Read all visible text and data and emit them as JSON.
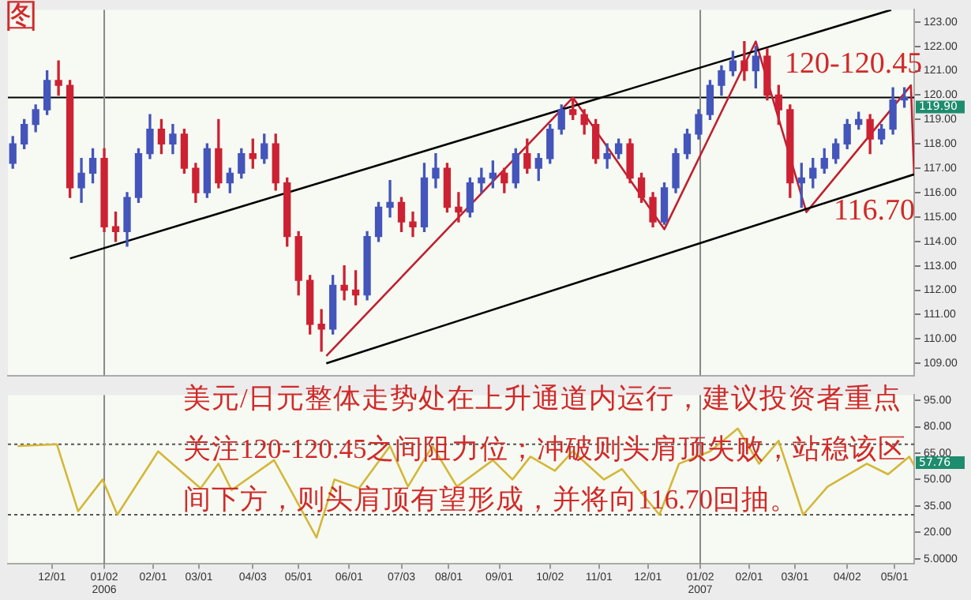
{
  "chart_data": [
    {
      "type": "candlestick",
      "tick_labels": "y",
      "xlim": [
        "2005-11-04",
        "2007-05-13"
      ],
      "ylim": [
        108.5,
        123.5
      ],
      "yticks": [
        {
          "value": 109,
          "label": "109.00"
        },
        {
          "value": 110,
          "label": "110.00"
        },
        {
          "value": 111,
          "label": "111.00"
        },
        {
          "value": 112,
          "label": "112.00"
        },
        {
          "value": 113,
          "label": "113.00"
        },
        {
          "value": 114,
          "label": "114.00"
        },
        {
          "value": 115,
          "label": "115.00"
        },
        {
          "value": 116,
          "label": "116.00"
        },
        {
          "value": 117,
          "label": "117.00"
        },
        {
          "value": 118,
          "label": "118.00"
        },
        {
          "value": 119,
          "label": "119.00"
        },
        {
          "value": 120,
          "label": "120.00"
        },
        {
          "value": 121,
          "label": "121.00"
        },
        {
          "value": 122,
          "label": "122.00"
        },
        {
          "value": 123,
          "label": "123.00"
        }
      ],
      "x": [
        "2005-11-07",
        "2005-11-14",
        "2005-11-21",
        "2005-11-28",
        "2005-12-05",
        "2005-12-12",
        "2005-12-19",
        "2005-12-26",
        "2006-01-02",
        "2006-01-09",
        "2006-01-16",
        "2006-01-23",
        "2006-01-30",
        "2006-02-06",
        "2006-02-13",
        "2006-02-20",
        "2006-02-27",
        "2006-03-06",
        "2006-03-13",
        "2006-03-20",
        "2006-03-27",
        "2006-04-03",
        "2006-04-10",
        "2006-04-17",
        "2006-04-24",
        "2006-05-01",
        "2006-05-08",
        "2006-05-15",
        "2006-05-22",
        "2006-05-29",
        "2006-06-05",
        "2006-06-12",
        "2006-06-19",
        "2006-06-26",
        "2006-07-03",
        "2006-07-10",
        "2006-07-17",
        "2006-07-24",
        "2006-07-31",
        "2006-08-07",
        "2006-08-14",
        "2006-08-21",
        "2006-08-28",
        "2006-09-04",
        "2006-09-11",
        "2006-09-18",
        "2006-09-25",
        "2006-10-02",
        "2006-10-09",
        "2006-10-16",
        "2006-10-23",
        "2006-10-30",
        "2006-11-06",
        "2006-11-13",
        "2006-11-20",
        "2006-11-27",
        "2006-12-04",
        "2006-12-11",
        "2006-12-18",
        "2006-12-25",
        "2007-01-01",
        "2007-01-08",
        "2007-01-15",
        "2007-01-22",
        "2007-01-29",
        "2007-02-05",
        "2007-02-12",
        "2007-02-19",
        "2007-02-26",
        "2007-03-05",
        "2007-03-12",
        "2007-03-19",
        "2007-03-26",
        "2007-04-02",
        "2007-04-09",
        "2007-04-16",
        "2007-04-23",
        "2007-04-30",
        "2007-05-07"
      ],
      "ohlc": [
        [
          117.2,
          118.3,
          117.0,
          118.0
        ],
        [
          118.0,
          119.0,
          117.8,
          118.8
        ],
        [
          118.8,
          119.6,
          118.5,
          119.4
        ],
        [
          119.4,
          121.0,
          119.2,
          120.6
        ],
        [
          120.6,
          121.4,
          120.0,
          120.4
        ],
        [
          120.4,
          120.6,
          115.8,
          116.2
        ],
        [
          116.2,
          117.4,
          115.6,
          116.8
        ],
        [
          116.8,
          117.8,
          116.4,
          117.4
        ],
        [
          117.4,
          117.8,
          114.4,
          114.6
        ],
        [
          114.6,
          115.2,
          114.0,
          114.4
        ],
        [
          114.4,
          116.0,
          113.8,
          115.8
        ],
        [
          115.8,
          117.8,
          115.6,
          117.6
        ],
        [
          117.6,
          119.2,
          117.4,
          118.6
        ],
        [
          118.6,
          119.0,
          117.6,
          118.0
        ],
        [
          118.0,
          118.8,
          117.6,
          118.4
        ],
        [
          118.4,
          118.6,
          116.8,
          117.0
        ],
        [
          117.0,
          117.2,
          115.6,
          116.0
        ],
        [
          116.0,
          118.0,
          115.8,
          117.8
        ],
        [
          117.8,
          119.0,
          116.2,
          116.4
        ],
        [
          116.4,
          117.0,
          116.0,
          116.8
        ],
        [
          116.8,
          117.8,
          116.6,
          117.6
        ],
        [
          117.6,
          118.2,
          117.0,
          117.4
        ],
        [
          117.4,
          118.4,
          117.2,
          118.0
        ],
        [
          118.0,
          118.4,
          116.1,
          116.4
        ],
        [
          116.4,
          116.6,
          113.8,
          114.2
        ],
        [
          114.2,
          114.4,
          111.8,
          112.4
        ],
        [
          112.4,
          112.6,
          110.2,
          110.6
        ],
        [
          110.6,
          111.2,
          109.5,
          110.4
        ],
        [
          110.4,
          112.6,
          110.2,
          112.2
        ],
        [
          112.2,
          113.0,
          111.6,
          112.0
        ],
        [
          112.0,
          112.8,
          111.4,
          111.8
        ],
        [
          111.8,
          114.4,
          111.6,
          114.2
        ],
        [
          114.2,
          115.6,
          114.0,
          115.4
        ],
        [
          115.4,
          116.5,
          115.0,
          115.6
        ],
        [
          115.6,
          115.8,
          114.4,
          114.8
        ],
        [
          114.8,
          115.2,
          114.2,
          114.6
        ],
        [
          114.6,
          117.2,
          114.4,
          116.6
        ],
        [
          116.6,
          117.6,
          116.2,
          117.0
        ],
        [
          117.0,
          117.2,
          115.2,
          115.4
        ],
        [
          115.4,
          116.0,
          114.8,
          115.2
        ],
        [
          115.2,
          116.6,
          115.0,
          116.4
        ],
        [
          116.4,
          117.0,
          116.0,
          116.6
        ],
        [
          116.6,
          117.3,
          116.2,
          116.8
        ],
        [
          116.8,
          117.0,
          116.0,
          116.4
        ],
        [
          116.4,
          117.8,
          116.2,
          117.6
        ],
        [
          117.6,
          118.2,
          116.8,
          117.0
        ],
        [
          117.0,
          117.6,
          116.5,
          117.4
        ],
        [
          117.4,
          118.8,
          117.2,
          118.6
        ],
        [
          118.6,
          119.6,
          118.4,
          119.4
        ],
        [
          119.4,
          119.9,
          119.0,
          119.2
        ],
        [
          119.2,
          119.4,
          118.4,
          118.8
        ],
        [
          118.8,
          119.0,
          117.2,
          117.4
        ],
        [
          117.4,
          118.0,
          117.0,
          117.6
        ],
        [
          117.6,
          118.2,
          117.4,
          118.0
        ],
        [
          118.0,
          118.2,
          116.4,
          116.6
        ],
        [
          116.6,
          116.8,
          115.6,
          115.8
        ],
        [
          115.8,
          116.0,
          114.6,
          114.8
        ],
        [
          114.8,
          116.4,
          114.7,
          116.2
        ],
        [
          116.2,
          117.8,
          116.0,
          117.6
        ],
        [
          117.6,
          118.6,
          117.4,
          118.4
        ],
        [
          118.4,
          119.4,
          118.2,
          119.2
        ],
        [
          119.2,
          120.6,
          119.0,
          120.4
        ],
        [
          120.4,
          121.2,
          120.0,
          121.0
        ],
        [
          121.0,
          121.8,
          120.8,
          121.4
        ],
        [
          121.4,
          122.2,
          120.6,
          121.0
        ],
        [
          121.0,
          122.0,
          120.3,
          121.6
        ],
        [
          121.6,
          121.9,
          119.8,
          120.0
        ],
        [
          120.0,
          120.4,
          118.8,
          119.4
        ],
        [
          119.4,
          119.6,
          115.8,
          116.4
        ],
        [
          116.4,
          117.2,
          115.4,
          116.6
        ],
        [
          116.6,
          117.4,
          116.2,
          117.0
        ],
        [
          117.0,
          117.8,
          116.8,
          117.4
        ],
        [
          117.4,
          118.2,
          117.2,
          118.0
        ],
        [
          118.0,
          119.0,
          117.8,
          118.8
        ],
        [
          118.8,
          119.3,
          118.6,
          119.0
        ],
        [
          119.0,
          119.2,
          117.6,
          118.2
        ],
        [
          118.2,
          118.8,
          118.0,
          118.6
        ],
        [
          118.6,
          120.3,
          118.4,
          119.8
        ],
        [
          119.8,
          120.3,
          119.5,
          119.9
        ]
      ],
      "colors": [
        "#4455bb",
        "#4455bb",
        "#4455bb",
        "#4455bb",
        "#cc2233",
        "#cc2233",
        "#4455bb",
        "#4455bb",
        "#cc2233",
        "#cc2233",
        "#4455bb",
        "#4455bb",
        "#4455bb",
        "#cc2233",
        "#4455bb",
        "#cc2233",
        "#cc2233",
        "#4455bb",
        "#cc2233",
        "#4455bb",
        "#4455bb",
        "#cc2233",
        "#4455bb",
        "#cc2233",
        "#cc2233",
        "#cc2233",
        "#cc2233",
        "#cc2233",
        "#4455bb",
        "#cc2233",
        "#cc2233",
        "#4455bb",
        "#4455bb",
        "#4455bb",
        "#cc2233",
        "#cc2233",
        "#4455bb",
        "#4455bb",
        "#cc2233",
        "#cc2233",
        "#4455bb",
        "#4455bb",
        "#4455bb",
        "#cc2233",
        "#4455bb",
        "#cc2233",
        "#4455bb",
        "#4455bb",
        "#4455bb",
        "#cc2233",
        "#cc2233",
        "#cc2233",
        "#4455bb",
        "#4455bb",
        "#cc2233",
        "#cc2233",
        "#cc2233",
        "#4455bb",
        "#4455bb",
        "#4455bb",
        "#4455bb",
        "#4455bb",
        "#4455bb",
        "#4455bb",
        "#cc2233",
        "#4455bb",
        "#cc2233",
        "#cc2233",
        "#cc2233",
        "#4455bb",
        "#4455bb",
        "#4455bb",
        "#4455bb",
        "#4455bb",
        "#4455bb",
        "#cc2233",
        "#4455bb",
        "#4455bb",
        "#4455bb"
      ],
      "series": [
        {
          "type": "line",
          "color": "#000000",
          "x": [
            "2005-12-12",
            "2007-04-29"
          ],
          "values": [
            113.3,
            123.5
          ]
        },
        {
          "type": "line",
          "color": "#000000",
          "x": [
            "2006-05-18",
            "2007-05-13"
          ],
          "values": [
            109.0,
            116.75
          ]
        },
        {
          "type": "line",
          "color": "#c02030",
          "x": [
            "2006-05-18",
            "2006-10-16",
            "2006-12-11",
            "2007-02-05",
            "2007-03-08",
            "2007-05-11",
            "2007-05-13"
          ],
          "values": [
            109.3,
            119.9,
            114.5,
            122.2,
            115.2,
            120.4,
            116.7
          ]
        }
      ],
      "ref_lines": [
        {
          "axis": "y",
          "value": 119.9,
          "label": "119.90",
          "color": "#000000"
        },
        {
          "axis": "x",
          "value": "2006-01-02",
          "color": "#888888"
        },
        {
          "axis": "x",
          "value": "2007-01-02",
          "color": "#888888"
        }
      ],
      "annotations": [
        "图",
        "120-120.45",
        "116.70",
        "美元/日元整体走势处在上升通道内运行，建议投资者重点关注120-120.45之间阻力位；冲破则头肩顶失败，站稳该区间下方，则头肩顶有望形成，并将向116.70回抽。"
      ]
    },
    {
      "type": "line",
      "xlim": [
        "2005-11-04",
        "2007-05-13"
      ],
      "ylim": [
        2,
        98
      ],
      "xticks": [
        {
          "value": "2005-12-01",
          "label": "12/01"
        },
        {
          "value": "2006-01-02",
          "label": "01/02\n2006"
        },
        {
          "value": "2006-02-01",
          "label": "02/01"
        },
        {
          "value": "2006-03-01",
          "label": "03/01"
        },
        {
          "value": "2006-04-03",
          "label": "04/03"
        },
        {
          "value": "2006-05-01",
          "label": "05/01"
        },
        {
          "value": "2006-06-01",
          "label": "06/01"
        },
        {
          "value": "2006-07-03",
          "label": "07/03"
        },
        {
          "value": "2006-08-01",
          "label": "08/01"
        },
        {
          "value": "2006-09-01",
          "label": "09/01"
        },
        {
          "value": "2006-10-02",
          "label": "10/02"
        },
        {
          "value": "2006-11-01",
          "label": "11/01"
        },
        {
          "value": "2006-12-01",
          "label": "12/01"
        },
        {
          "value": "2007-01-02",
          "label": "01/02\n2007"
        },
        {
          "value": "2007-02-01",
          "label": "02/01"
        },
        {
          "value": "2007-03-01",
          "label": "03/01"
        },
        {
          "value": "2007-04-02",
          "label": "04/02"
        },
        {
          "value": "2007-05-01",
          "label": "05/01"
        }
      ],
      "yticks": [
        {
          "value": 5,
          "label": "5.0000"
        },
        {
          "value": 20,
          "label": "20.00"
        },
        {
          "value": 35,
          "label": "35.00"
        },
        {
          "value": 50,
          "label": "50.00"
        },
        {
          "value": 65,
          "label": "65.00"
        },
        {
          "value": 80,
          "label": "80.00"
        },
        {
          "value": 95,
          "label": "95.00"
        }
      ],
      "series": [
        {
          "color": "#d4b73a",
          "x": [
            "2005-11-10",
            "2005-12-04",
            "2005-12-17",
            "2006-01-01",
            "2006-01-10",
            "2006-02-04",
            "2006-03-02",
            "2006-03-13",
            "2006-03-21",
            "2006-04-16",
            "2006-04-25",
            "2006-05-12",
            "2006-05-23",
            "2006-06-07",
            "2006-06-26",
            "2006-07-07",
            "2006-07-22",
            "2006-08-06",
            "2006-08-28",
            "2006-09-09",
            "2006-09-20",
            "2006-10-05",
            "2006-10-16",
            "2006-11-04",
            "2006-11-15",
            "2006-12-08",
            "2006-12-20",
            "2007-01-08",
            "2007-01-25",
            "2007-02-07",
            "2007-02-19",
            "2007-03-06",
            "2007-03-21",
            "2007-04-14",
            "2007-04-27",
            "2007-05-10",
            "2007-05-13"
          ],
          "values": [
            69,
            70,
            32,
            50,
            30,
            66,
            45,
            59,
            44,
            61,
            46,
            17,
            50,
            45,
            69,
            46,
            69,
            46,
            61,
            50,
            63,
            55,
            66,
            50,
            56,
            30,
            59,
            66,
            79,
            59,
            72,
            30,
            46,
            59,
            53,
            63,
            58
          ]
        }
      ],
      "ref_lines": [
        {
          "axis": "y",
          "value": 70,
          "line_style": "dotted",
          "color": "#555555"
        },
        {
          "axis": "y",
          "value": 30,
          "line_style": "dotted",
          "color": "#555555"
        },
        {
          "axis": "x",
          "value": "2006-01-02",
          "color": "#888888"
        },
        {
          "axis": "x",
          "value": "2007-01-02",
          "color": "#888888"
        }
      ],
      "annotations": [
        "57.76"
      ]
    }
  ]
}
